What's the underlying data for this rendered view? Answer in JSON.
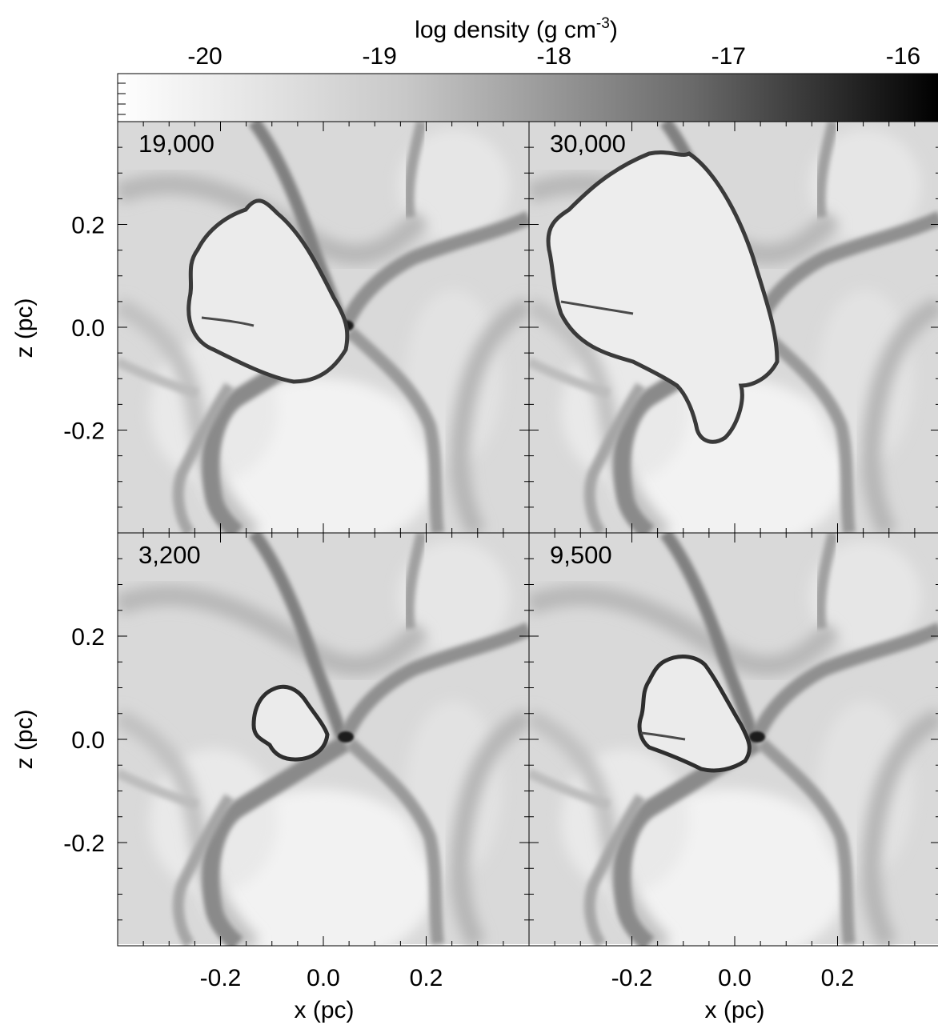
{
  "colorbar": {
    "label_main": "log density (g cm",
    "label_exp": "-3",
    "label_close": ")",
    "ticks": [
      "-20",
      "-19",
      "-18",
      "-17",
      "-16"
    ],
    "tick_values": [
      -20,
      -19,
      -18,
      -17,
      -16
    ],
    "range": [
      -20.5,
      -15.8
    ],
    "colors": [
      "#ffffff",
      "#000000"
    ]
  },
  "axes": {
    "xlabel": "x (pc)",
    "ylabel": "z (pc)",
    "xtick_labels": [
      "-0.2",
      "0.0",
      "0.2"
    ],
    "ytick_labels": [
      "0.2",
      "0.0",
      "-0.2"
    ],
    "xlim": [
      -0.4,
      0.4
    ],
    "ylim": [
      -0.4,
      0.4
    ]
  },
  "panels": [
    {
      "label": "19,000",
      "bubble": "medium"
    },
    {
      "label": "30,000",
      "bubble": "large"
    },
    {
      "label": "3,200",
      "bubble": "small"
    },
    {
      "label": "9,500",
      "bubble": "medium-small"
    }
  ],
  "chart_data": {
    "type": "heatmap",
    "quantity": "log density (g cm^-3)",
    "colormap": "grayscale (white = low, black = high)",
    "colorbar_range": [
      -20.5,
      -15.8
    ],
    "xlim": [
      -0.4,
      0.4
    ],
    "ylim": [
      -0.4,
      0.4
    ],
    "xlabel": "x (pc)",
    "ylabel": "z (pc)",
    "panels": [
      "19,000",
      "30,000",
      "3,200",
      "9,500"
    ],
    "grid": false
  }
}
